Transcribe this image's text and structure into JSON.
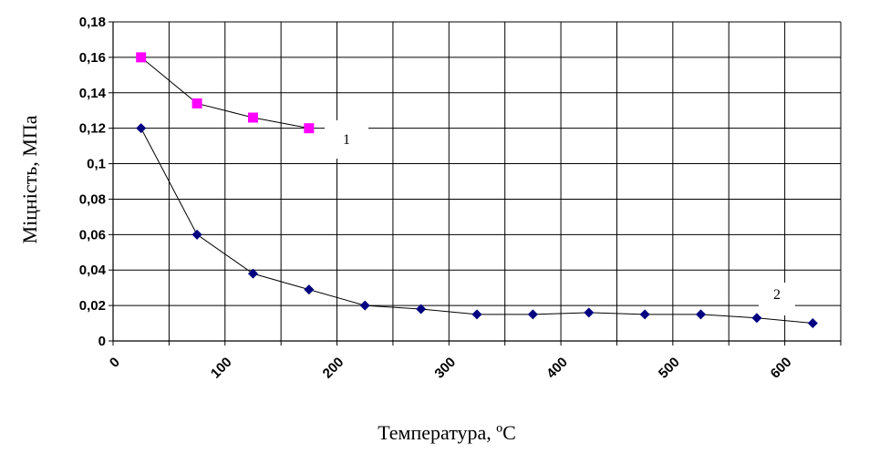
{
  "chart_data": {
    "type": "line",
    "title": "",
    "xlabel": "Температура, ºС",
    "ylabel": "Міцність, МПа",
    "xlim": [
      0,
      650
    ],
    "ylim": [
      0,
      0.18
    ],
    "x_ticks": [
      "0",
      "100",
      "200",
      "300",
      "400",
      "500",
      "600"
    ],
    "y_ticks": [
      "0",
      "0,02",
      "0,04",
      "0,06",
      "0,08",
      "0,1",
      "0,12",
      "0,14",
      "0,16",
      "0,18"
    ],
    "grid": true,
    "series": [
      {
        "label": "1",
        "color": "#ff00ff",
        "marker": "square",
        "x": [
          25,
          75,
          125,
          175
        ],
        "y": [
          0.16,
          0.134,
          0.126,
          0.12
        ]
      },
      {
        "label": "2",
        "color": "#000080",
        "marker": "diamond",
        "x": [
          25,
          75,
          125,
          175,
          225,
          275,
          325,
          375,
          425,
          475,
          525,
          575,
          625
        ],
        "y": [
          0.12,
          0.06,
          0.038,
          0.029,
          0.02,
          0.018,
          0.015,
          0.015,
          0.016,
          0.015,
          0.015,
          0.013,
          0.01
        ]
      }
    ]
  }
}
